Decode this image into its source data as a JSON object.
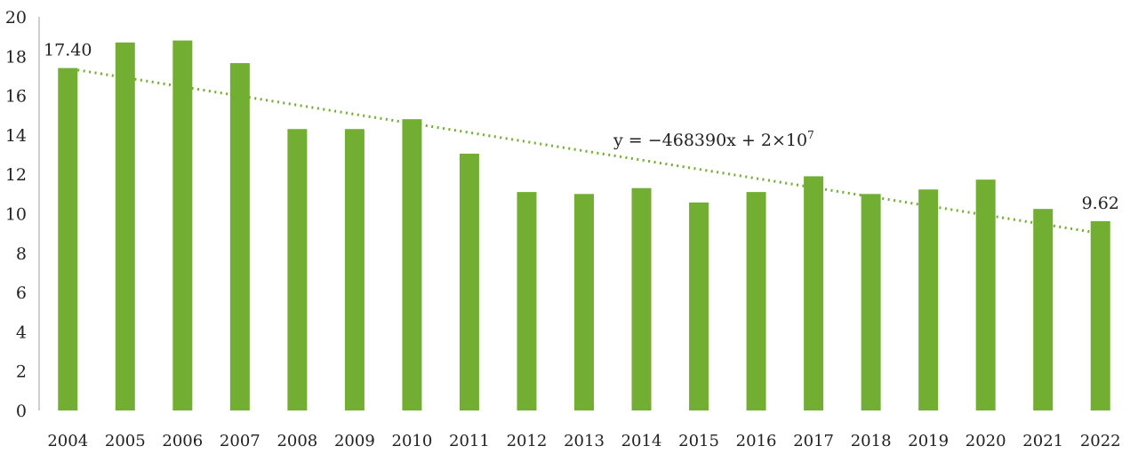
{
  "chart_data": {
    "type": "bar",
    "title": "",
    "xlabel": "",
    "ylabel": "",
    "ylim": [
      0,
      20
    ],
    "yticks": [
      0,
      2,
      4,
      6,
      8,
      10,
      12,
      14,
      16,
      18,
      20
    ],
    "grid": false,
    "categories": [
      "2004",
      "2005",
      "2006",
      "2007",
      "2008",
      "2009",
      "2010",
      "2011",
      "2012",
      "2013",
      "2014",
      "2015",
      "2016",
      "2017",
      "2018",
      "2019",
      "2020",
      "2021",
      "2022"
    ],
    "values": [
      17.4,
      18.7,
      18.8,
      17.65,
      14.3,
      14.3,
      14.8,
      13.05,
      11.1,
      11.0,
      11.3,
      10.57,
      11.1,
      11.9,
      11.0,
      11.23,
      11.73,
      10.24,
      9.62
    ],
    "data_labels": [
      {
        "index": 0,
        "text": "17.40"
      },
      {
        "index": 18,
        "text": "9.62"
      }
    ],
    "trendline": {
      "type": "linear",
      "style": "dotted",
      "equation_prefix": "y = −468390x + 2×10",
      "equation_superscript": "7",
      "start_value": 17.3,
      "end_value": 9.0
    },
    "colors": {
      "bar": "#72AE31",
      "trendline": "#72AE31",
      "axis": "#BFBFBF"
    }
  }
}
